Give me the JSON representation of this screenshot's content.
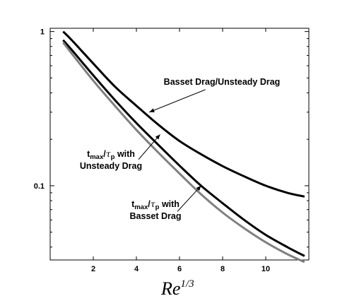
{
  "chart_data": {
    "type": "line",
    "title": "",
    "xlabel": {
      "base": "Re",
      "exponent": "1/3"
    },
    "ylabel": "",
    "xscale": "linear",
    "yscale": "log",
    "xlim": [
      0,
      12
    ],
    "ylim": [
      0.033,
      1.05
    ],
    "grid": false,
    "xticks": [
      2,
      4,
      6,
      8,
      10
    ],
    "xtick_labels": [
      "2",
      "4",
      "6",
      "8",
      "10"
    ],
    "yticks": [
      1,
      0.1
    ],
    "ytick_labels": [
      "1",
      "0.1"
    ],
    "series": [
      {
        "key": "basset_unsteady_ratio",
        "color": "#000000",
        "x": [
          0.6,
          1,
          2,
          3,
          4,
          5,
          6,
          7,
          8,
          9,
          10,
          11,
          11.8
        ],
        "y": [
          1.0,
          0.88,
          0.62,
          0.44,
          0.33,
          0.25,
          0.195,
          0.16,
          0.134,
          0.115,
          0.1,
          0.09,
          0.085
        ]
      },
      {
        "key": "tmax_unsteady",
        "color": "#000000",
        "x": [
          0.6,
          1,
          2,
          3,
          4,
          5,
          6,
          7,
          8,
          9,
          10,
          11,
          11.8
        ],
        "y": [
          0.88,
          0.76,
          0.52,
          0.36,
          0.255,
          0.185,
          0.135,
          0.1,
          0.077,
          0.06,
          0.048,
          0.04,
          0.035
        ]
      },
      {
        "key": "tmax_basset",
        "color": "#808080",
        "x": [
          0.6,
          1,
          2,
          3,
          4,
          5,
          6,
          7,
          8,
          9,
          10,
          11,
          11.8
        ],
        "y": [
          0.85,
          0.72,
          0.48,
          0.33,
          0.23,
          0.165,
          0.12,
          0.088,
          0.067,
          0.053,
          0.043,
          0.036,
          0.032
        ]
      }
    ],
    "annotations": [
      {
        "key": "basset_unsteady",
        "lines": [
          {
            "text": "Basset Drag/Unsteady Drag"
          }
        ],
        "arrow_from": [
          7.2,
          0.42
        ],
        "arrow_to": [
          4.6,
          0.3
        ]
      },
      {
        "key": "tmax_unsteady",
        "lines": [
          {
            "main": "t",
            "sub": "max",
            "slash": "/",
            "tau": "τ",
            "tau_sub": "p",
            "rest": " with"
          },
          {
            "text": "Unsteady Drag"
          }
        ],
        "arrow_from": [
          4.1,
          0.148
        ],
        "arrow_to": [
          5.1,
          0.215
        ]
      },
      {
        "key": "tmax_basset",
        "lines": [
          {
            "main": "t",
            "sub": "max",
            "slash": "/",
            "tau": "τ",
            "tau_sub": "p",
            "rest": " with"
          },
          {
            "text": "Basset Drag"
          }
        ],
        "arrow_from": [
          5.9,
          0.068
        ],
        "arrow_to": [
          7.0,
          0.1
        ]
      }
    ]
  }
}
